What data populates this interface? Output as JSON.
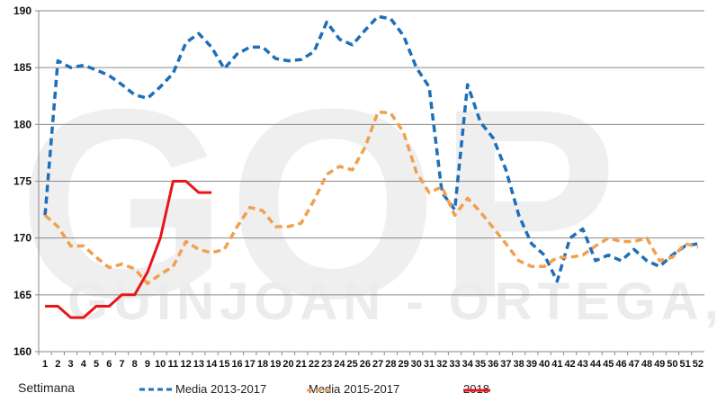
{
  "chart_data": {
    "type": "line",
    "title": "",
    "xlabel": "Settimana",
    "ylabel": "",
    "ylim": [
      160,
      190
    ],
    "yticks": [
      160,
      165,
      170,
      175,
      180,
      185,
      190
    ],
    "grid": true,
    "legend_position": "bottom",
    "watermark": [
      "GOP",
      "GUINJOAN - ORTEGA,S.L."
    ],
    "x": [
      1,
      2,
      3,
      4,
      5,
      6,
      7,
      8,
      9,
      10,
      11,
      12,
      13,
      14,
      15,
      16,
      17,
      18,
      19,
      20,
      21,
      22,
      23,
      24,
      25,
      26,
      27,
      28,
      29,
      30,
      31,
      32,
      33,
      34,
      35,
      36,
      37,
      38,
      39,
      40,
      41,
      42,
      43,
      44,
      45,
      46,
      47,
      48,
      49,
      50,
      51,
      52
    ],
    "series": [
      {
        "name": "Media 2013-2017",
        "color": "#1f6fb8",
        "style": "dashed",
        "values": [
          172,
          185.6,
          185,
          185.2,
          184.8,
          184.3,
          183.5,
          182.6,
          182.3,
          183.3,
          184.5,
          187.2,
          188,
          186.8,
          184.9,
          186.2,
          186.8,
          186.8,
          185.8,
          185.6,
          185.7,
          186.4,
          189,
          187.5,
          187,
          188.3,
          189.5,
          189.3,
          187.8,
          185,
          183.3,
          174,
          172.5,
          183.5,
          180.2,
          178.8,
          176,
          172,
          169.5,
          168.5,
          166.2,
          170,
          170.8,
          168,
          168.5,
          168,
          169,
          168,
          167.5,
          168.5,
          169.3,
          169.5
        ]
      },
      {
        "name": "Media 2015-2017",
        "color": "#f0a050",
        "style": "dashed",
        "values": [
          172,
          171,
          169.3,
          169.3,
          168.3,
          167.4,
          167.7,
          167.3,
          166,
          166.8,
          167.5,
          169.7,
          169,
          168.7,
          169,
          171,
          172.7,
          172.4,
          171,
          171,
          171.3,
          173.3,
          175.6,
          176.3,
          176,
          178,
          181.1,
          181,
          179.3,
          175.8,
          174,
          174.5,
          172,
          173.5,
          172.3,
          170.9,
          169.5,
          168,
          167.5,
          167.5,
          168.3,
          168.3,
          168.5,
          169.3,
          170,
          169.7,
          169.7,
          170,
          168,
          168.3,
          169.5,
          169.2
        ]
      },
      {
        "name": "2018",
        "color": "#e8161a",
        "style": "solid",
        "values": [
          164,
          164,
          163,
          163,
          164,
          164,
          165,
          165,
          167,
          170,
          175,
          175,
          174,
          174
        ]
      }
    ]
  },
  "axis": {
    "xlabel": "Settimana"
  },
  "legend": [
    {
      "label": "Media 2013-2017",
      "color": "#1f6fb8"
    },
    {
      "label": "Media 2015-2017",
      "color": "#f0a050"
    },
    {
      "label": "2018",
      "color": "#e8161a"
    }
  ]
}
